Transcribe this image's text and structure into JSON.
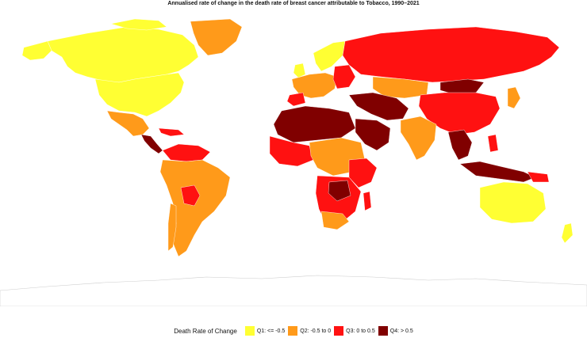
{
  "title": "Annualised rate of change in the death rate of breast cancer attributable to Tobacco, 1990–2021",
  "legend": {
    "title": "Death Rate of Change",
    "items": [
      {
        "label": "Q1: <= -0.5",
        "color": "#ffff33"
      },
      {
        "label": "Q2: -0.5 to 0",
        "color": "#ff9a1a"
      },
      {
        "label": "Q3: 0 to 0.5",
        "color": "#ff1111"
      },
      {
        "label": "Q4: > 0.5",
        "color": "#800000"
      }
    ]
  },
  "colors": {
    "q1": "#ffff33",
    "q2": "#ff9a1a",
    "q3": "#ff1111",
    "q4": "#800000",
    "border": "#ffffff",
    "antarctica_outline": "#cccccc"
  }
}
